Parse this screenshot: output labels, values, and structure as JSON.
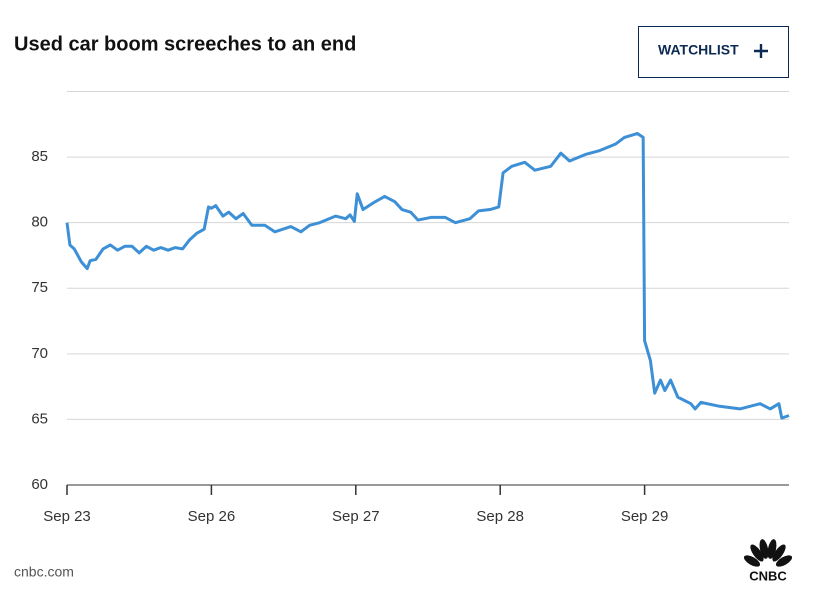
{
  "title": "Used car boom screeches to an end",
  "button": "WATCHLIST",
  "footer": "cnbc.com",
  "logo": "CNBC",
  "chart_data": {
    "type": "line",
    "color": "#3d8fd6",
    "grid": true,
    "xlim": [
      0,
      5
    ],
    "ylim": [
      60,
      90
    ],
    "yticks": [
      60,
      65,
      70,
      75,
      80,
      85
    ],
    "xticks": [
      {
        "value": 0,
        "label": "Sep 23"
      },
      {
        "value": 1,
        "label": "Sep 26"
      },
      {
        "value": 2,
        "label": "Sep 27"
      },
      {
        "value": 3,
        "label": "Sep 28"
      },
      {
        "value": 4,
        "label": "Sep 29"
      }
    ],
    "x": [
      0,
      0.02,
      0.05,
      0.1,
      0.14,
      0.16,
      0.2,
      0.25,
      0.3,
      0.35,
      0.4,
      0.45,
      0.5,
      0.55,
      0.6,
      0.65,
      0.7,
      0.75,
      0.8,
      0.85,
      0.9,
      0.95,
      0.98,
      1.0,
      1.03,
      1.08,
      1.12,
      1.17,
      1.22,
      1.28,
      1.37,
      1.44,
      1.55,
      1.62,
      1.68,
      1.75,
      1.86,
      1.93,
      1.96,
      1.99,
      2.01,
      2.05,
      2.12,
      2.2,
      2.27,
      2.32,
      2.38,
      2.43,
      2.52,
      2.62,
      2.69,
      2.79,
      2.85,
      2.93,
      2.99,
      3.02,
      3.08,
      3.17,
      3.24,
      3.35,
      3.42,
      3.48,
      3.59,
      3.69,
      3.8,
      3.86,
      3.95,
      3.99,
      4.0,
      4.04,
      4.07,
      4.11,
      4.14,
      4.18,
      4.23,
      4.32,
      4.35,
      4.39,
      4.52,
      4.66,
      4.8,
      4.87,
      4.93,
      4.95,
      5.0
    ],
    "values": [
      80,
      78.3,
      78,
      77,
      76.5,
      77.1,
      77.2,
      78,
      78.3,
      77.9,
      78.2,
      78.2,
      77.7,
      78.2,
      77.9,
      78.1,
      77.9,
      78.1,
      78,
      78.7,
      79.2,
      79.5,
      81.2,
      81.1,
      81.3,
      80.5,
      80.8,
      80.3,
      80.7,
      79.8,
      79.8,
      79.3,
      79.7,
      79.3,
      79.8,
      80,
      80.5,
      80.3,
      80.6,
      80.1,
      82.2,
      81,
      81.5,
      82,
      81.6,
      81,
      80.8,
      80.2,
      80.4,
      80.4,
      80,
      80.3,
      80.9,
      81,
      81.2,
      83.8,
      84.3,
      84.6,
      84,
      84.3,
      85.3,
      84.7,
      85.2,
      85.5,
      86,
      86.5,
      86.8,
      86.5,
      71,
      69.5,
      67,
      68,
      67.2,
      68,
      66.7,
      66.2,
      65.8,
      66.3,
      66,
      65.8,
      66.2,
      65.8,
      66.2,
      65.1,
      65.3
    ]
  }
}
